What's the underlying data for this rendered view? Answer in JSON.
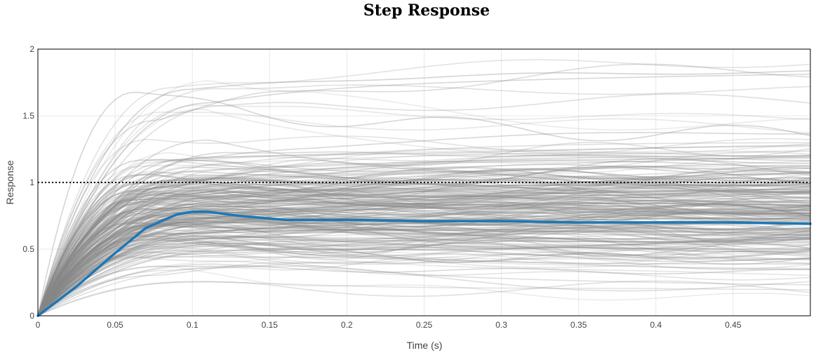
{
  "chart_data": {
    "type": "line",
    "title": "Step Response",
    "xlabel": "Time (s)",
    "ylabel": "Response",
    "xlim": [
      0,
      0.5
    ],
    "ylim": [
      0,
      2
    ],
    "x_ticks": [
      "0",
      "0.05",
      "0.1",
      "0.15",
      "0.2",
      "0.25",
      "0.3",
      "0.35",
      "0.4",
      "0.45"
    ],
    "y_ticks": [
      "0",
      "0.5",
      "1",
      "1.5",
      "2"
    ],
    "grid": true,
    "reference_line": {
      "y": 1,
      "style": "dotted",
      "color": "#000000"
    },
    "mean_series": {
      "color": "#1f77b4",
      "x": [
        0,
        0.025,
        0.05,
        0.07,
        0.09,
        0.1,
        0.11,
        0.13,
        0.16,
        0.2,
        0.25,
        0.3,
        0.35,
        0.4,
        0.45,
        0.5
      ],
      "y": [
        0,
        0.22,
        0.47,
        0.66,
        0.76,
        0.78,
        0.78,
        0.75,
        0.72,
        0.72,
        0.71,
        0.71,
        0.7,
        0.7,
        0.7,
        0.69
      ]
    },
    "sample_series_color": "#888888",
    "sample_series_note": "ensemble of simulated responses"
  }
}
